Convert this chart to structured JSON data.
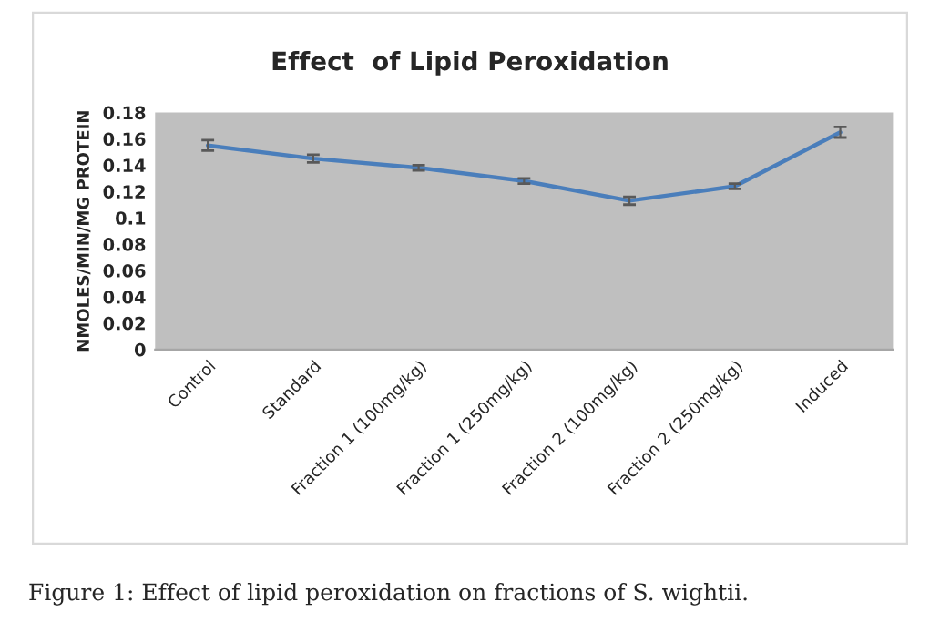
{
  "chart_data": {
    "type": "line",
    "title": "Effect  of Lipid Peroxidation",
    "ylabel": "NMOLES/MIN/MG PROTEIN",
    "categories": [
      "Control",
      "Standard",
      "Fraction 1 (100mg/kg)",
      "Fraction 1 (250mg/kg)",
      "Fraction 2 (100mg/kg)",
      "Fraction 2 (250mg/kg)",
      "Induced"
    ],
    "series": [
      {
        "color": "#4a7ebb",
        "values": [
          0.155,
          0.145,
          0.138,
          0.128,
          0.113,
          0.124,
          0.165
        ],
        "errors": [
          0.004,
          0.003,
          0.002,
          0.002,
          0.003,
          0.002,
          0.004
        ]
      }
    ],
    "ylim": [
      0,
      0.18
    ],
    "yticks": [
      0,
      0.02,
      0.04,
      0.06,
      0.08,
      0.1,
      0.12,
      0.14,
      0.16,
      0.18
    ],
    "annotations": [
      "Figure 1: Effect of lipid peroxidation on fractions of S. wightii."
    ],
    "grid": false,
    "legend": false,
    "marker": "none",
    "line_style": "solid"
  }
}
